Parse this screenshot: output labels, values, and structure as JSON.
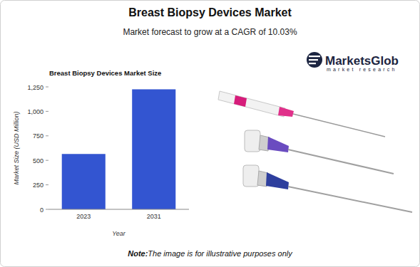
{
  "header": {
    "title": "Breast Biopsy Devices Market",
    "subtitle": "Market forecast to grow at a CAGR of 10.03%"
  },
  "logo": {
    "name": "MarketsGlob",
    "tagline": "market research"
  },
  "note": {
    "label": "Note:",
    "text": "The image is for illustrative purposes only"
  },
  "chart_data": {
    "type": "bar",
    "title": "Breast Biopsy Devices Market Size",
    "x_label": "Year",
    "y_label": "Market Size (USD Million)",
    "categories": [
      "2023",
      "2031"
    ],
    "values": [
      565,
      1225
    ],
    "color": "#3355d1",
    "ylim": [
      0,
      1250
    ],
    "yticks": [
      0,
      250,
      500,
      750,
      {
        "value": 1000,
        "label": "1,000"
      },
      {
        "value": 1250,
        "label": "1,250"
      }
    ],
    "grid": false
  }
}
